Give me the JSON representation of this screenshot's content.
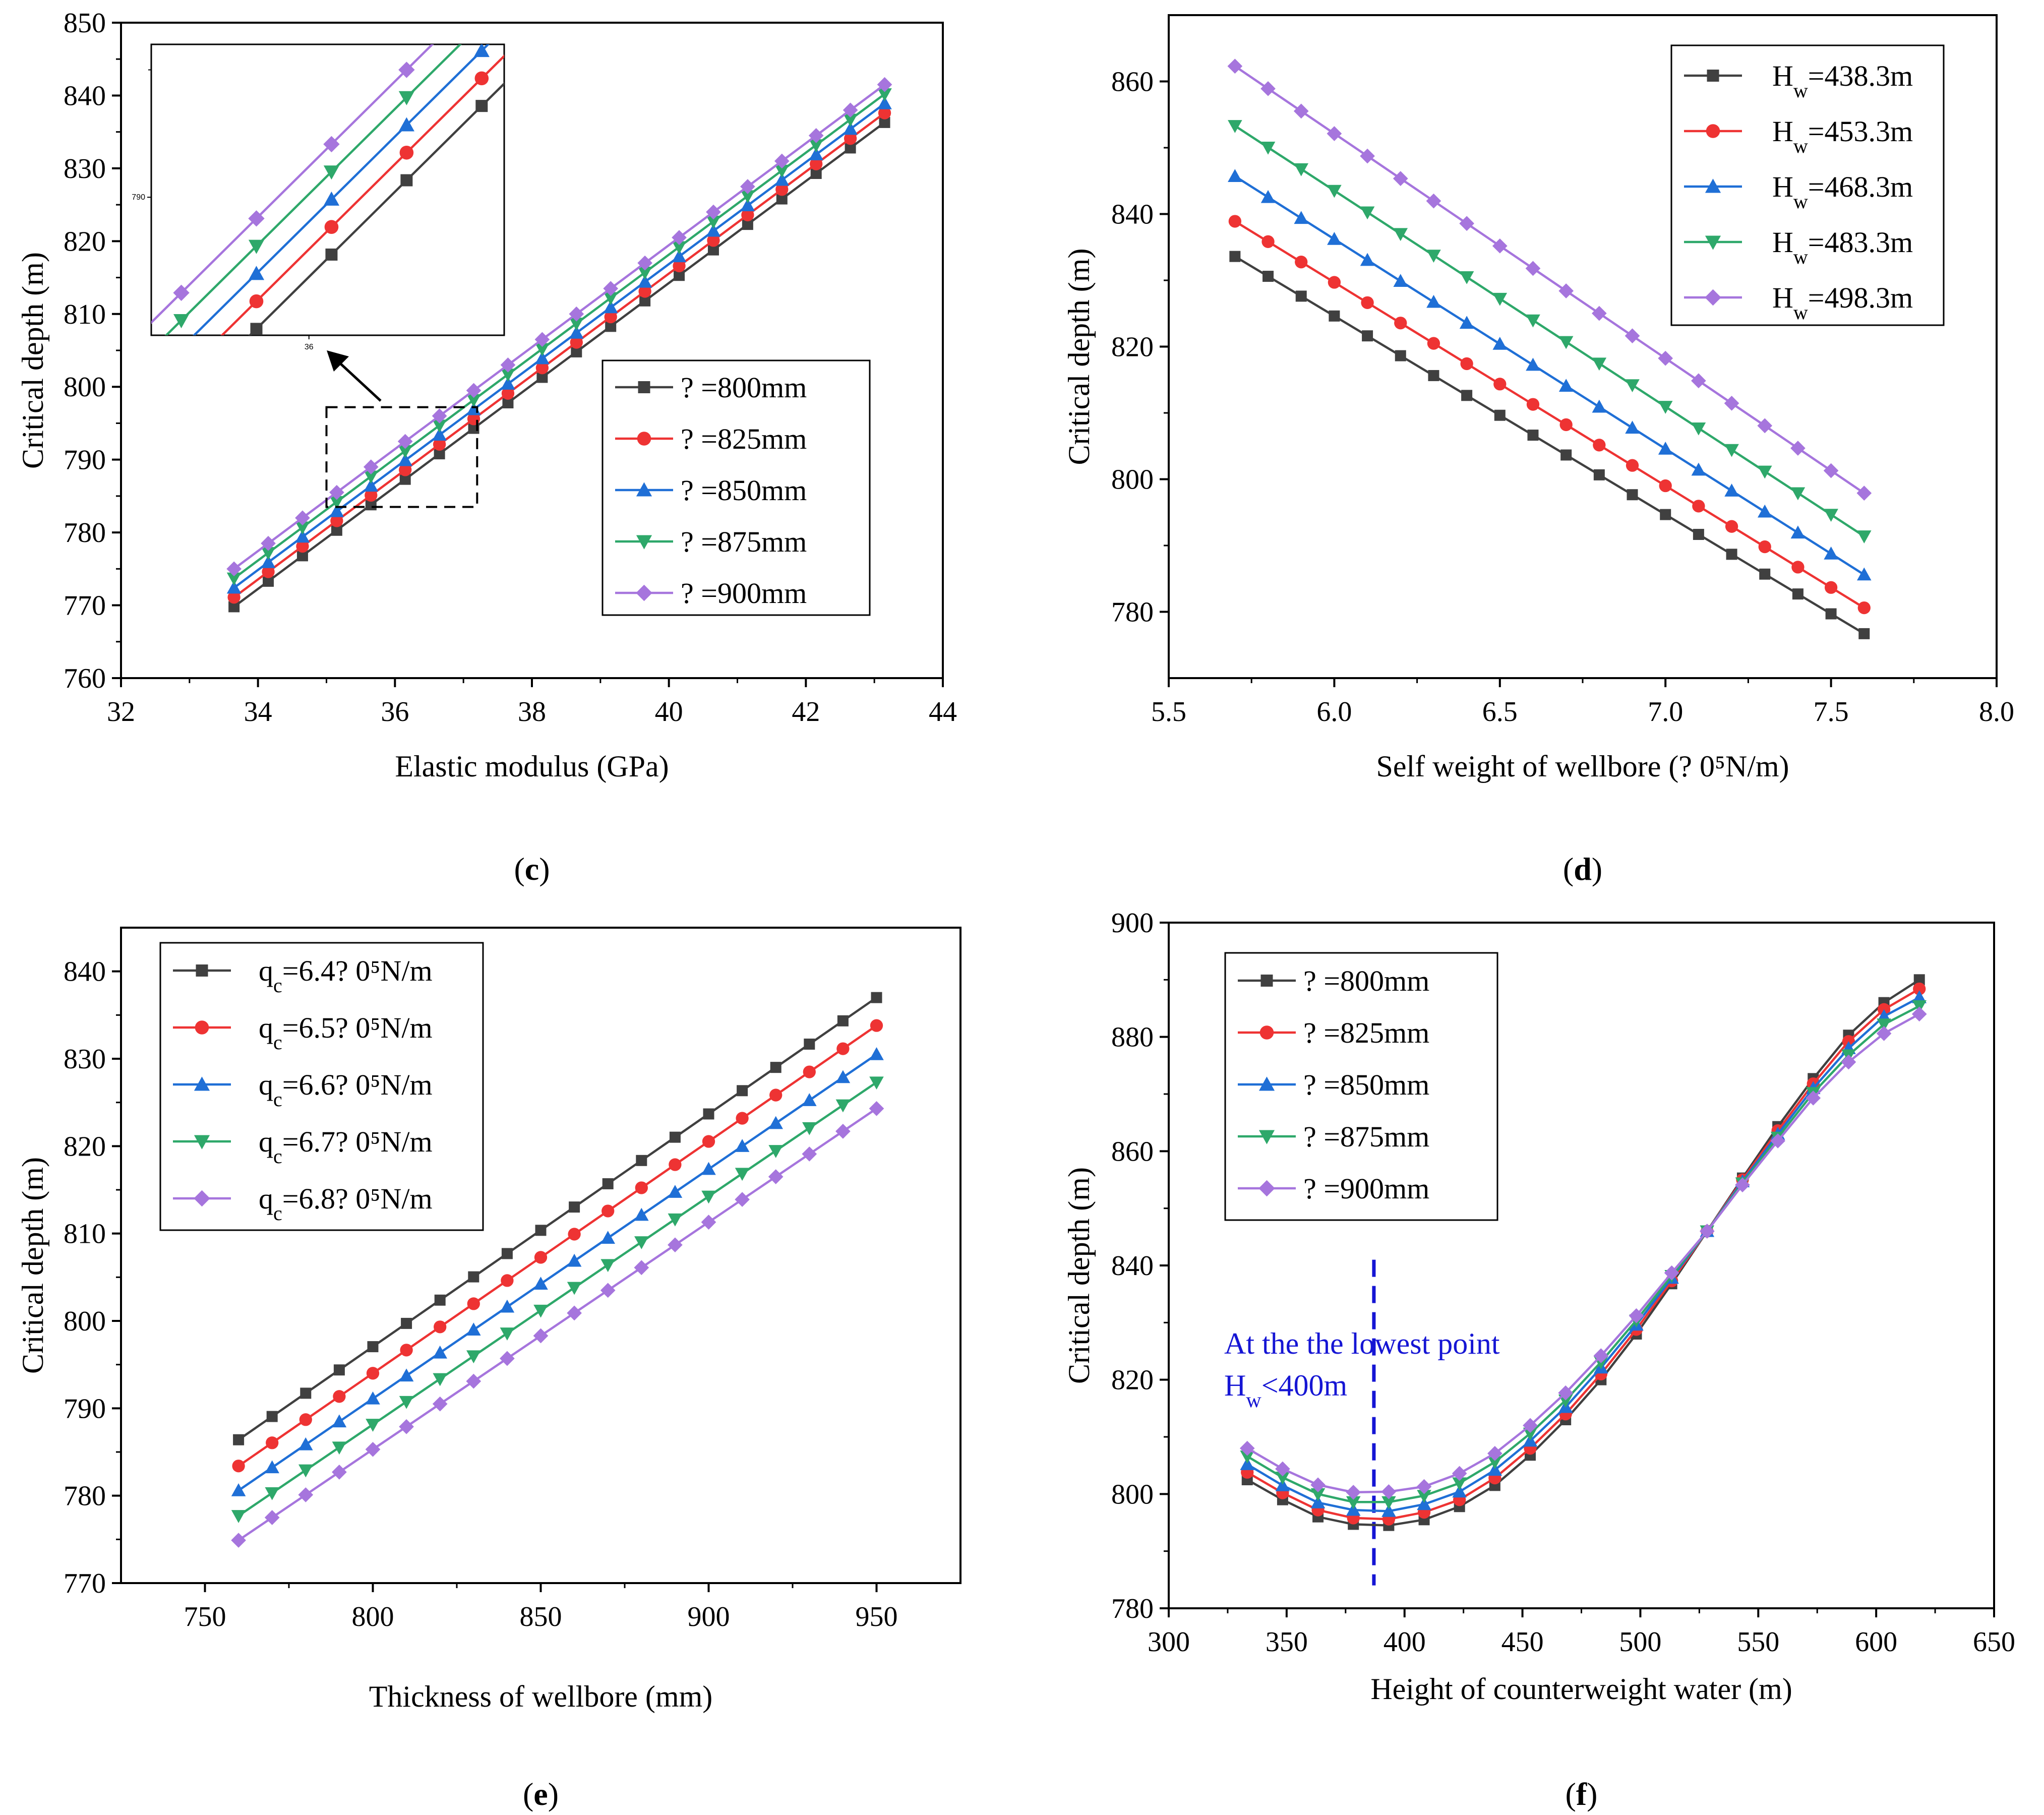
{
  "colors": {
    "series": [
      "#404040",
      "#ee3333",
      "#1f6fd6",
      "#2ea86a",
      "#a675dd"
    ],
    "axis": "#000000",
    "annotation": "#1515d4",
    "dashed_line": "#1515d4"
  },
  "chart_data": [
    {
      "id": "c",
      "panel_label": "(c)",
      "type": "line",
      "title": "",
      "xlabel": "Elastic modulus (GPa)",
      "ylabel": "Critical depth (m)",
      "xlim": [
        32,
        44
      ],
      "ylim": [
        760,
        850
      ],
      "xticks": [
        32,
        34,
        36,
        38,
        40,
        42,
        44
      ],
      "yticks": [
        760,
        770,
        780,
        790,
        800,
        810,
        820,
        830,
        840,
        850
      ],
      "xtick_labels": [
        "32",
        "34",
        "36",
        "38",
        "40",
        "42",
        "44"
      ],
      "ytick_labels": [
        "760",
        "770",
        "780",
        "790",
        "800",
        "810",
        "820",
        "830",
        "840",
        "850"
      ],
      "legend_position": "lower-right",
      "x": [
        33.65,
        34.15,
        34.65,
        35.15,
        35.65,
        36.15,
        36.65,
        37.15,
        37.65,
        38.15,
        38.65,
        39.15,
        39.65,
        40.15,
        40.65,
        41.15,
        41.65,
        42.15,
        42.65,
        43.15
      ],
      "series": [
        {
          "name": "? =800mm",
          "marker": "square",
          "y0": 769.8,
          "y1": 836.3
        },
        {
          "name": "? =825mm",
          "marker": "circle",
          "y0": 771.1,
          "y1": 837.6
        },
        {
          "name": "? =850mm",
          "marker": "triangle-up",
          "y0": 772.4,
          "y1": 838.9
        },
        {
          "name": "? =875mm",
          "marker": "triangle-down",
          "y0": 773.7,
          "y1": 840.2
        },
        {
          "name": "? =900mm",
          "marker": "diamond",
          "y0": 775.0,
          "y1": 841.5
        }
      ],
      "zoom_box": {
        "x": [
          35.0,
          37.2
        ],
        "y": [
          783.5,
          797.2
        ]
      },
      "inset": {
        "xlim": [
          34.95,
          37.3
        ],
        "ylim": [
          783.5,
          797.2
        ],
        "tick_x_label": "36",
        "tick_y_label": "790"
      }
    },
    {
      "id": "d",
      "panel_label": "(d)",
      "type": "line",
      "title": "",
      "xlabel": "Self weight of wellbore (?   0⁵N/m)",
      "ylabel": "Critical depth (m)",
      "xlim": [
        5.5,
        8.0
      ],
      "ylim": [
        770,
        870
      ],
      "xticks": [
        5.5,
        6.0,
        6.5,
        7.0,
        7.5,
        8.0
      ],
      "yticks": [
        780,
        800,
        820,
        840,
        860
      ],
      "xtick_labels": [
        "5.5",
        "6.0",
        "6.5",
        "7.0",
        "7.5",
        "8.0"
      ],
      "ytick_labels": [
        "780",
        "800",
        "820",
        "840",
        "860"
      ],
      "legend_position": "top-right",
      "x": [
        5.7,
        5.8,
        5.9,
        6.0,
        6.1,
        6.2,
        6.3,
        6.4,
        6.5,
        6.6,
        6.7,
        6.8,
        6.9,
        7.0,
        7.1,
        7.2,
        7.3,
        7.4,
        7.5,
        7.6
      ],
      "series": [
        {
          "name": "H",
          "sub": "w",
          "rest": "=438.3m",
          "marker": "square",
          "y0": 833.6,
          "y1": 776.7
        },
        {
          "name": "H",
          "sub": "w",
          "rest": "=453.3m",
          "marker": "circle",
          "y0": 838.9,
          "y1": 780.6
        },
        {
          "name": "H",
          "sub": "w",
          "rest": "=468.3m",
          "marker": "triangle-up",
          "y0": 845.7,
          "y1": 785.6
        },
        {
          "name": "H",
          "sub": "w",
          "rest": "=483.3m",
          "marker": "triangle-down",
          "y0": 853.3,
          "y1": 791.4
        },
        {
          "name": "H",
          "sub": "w",
          "rest": "=498.3m",
          "marker": "diamond",
          "y0": 862.3,
          "y1": 797.9
        }
      ]
    },
    {
      "id": "e",
      "panel_label": "(e)",
      "type": "line",
      "title": "",
      "xlabel": "Thickness of wellbore (mm)",
      "ylabel": "Critical depth (m)",
      "xlim": [
        725,
        975
      ],
      "ylim": [
        770,
        845
      ],
      "xticks": [
        750,
        800,
        850,
        900,
        950
      ],
      "yticks": [
        770,
        780,
        790,
        800,
        810,
        820,
        830,
        840
      ],
      "xtick_labels": [
        "750",
        "800",
        "850",
        "900",
        "950"
      ],
      "ytick_labels": [
        "770",
        "780",
        "790",
        "800",
        "810",
        "820",
        "830",
        "840"
      ],
      "legend_position": "top-left",
      "x": [
        760,
        770,
        780,
        790,
        800,
        810,
        820,
        830,
        840,
        850,
        860,
        870,
        880,
        890,
        900,
        910,
        920,
        930,
        940,
        950
      ],
      "series": [
        {
          "name": "q",
          "sub": "c",
          "rest": "=6.4?   0⁵N/m",
          "marker": "square",
          "y0": 786.4,
          "y1": 837.0
        },
        {
          "name": "q",
          "sub": "c",
          "rest": "=6.5?   0⁵N/m",
          "marker": "circle",
          "y0": 783.4,
          "y1": 833.8
        },
        {
          "name": "q",
          "sub": "c",
          "rest": "=6.6?   0⁵N/m",
          "marker": "triangle-up",
          "y0": 780.6,
          "y1": 830.5
        },
        {
          "name": "q",
          "sub": "c",
          "rest": "=6.7?   0⁵N/m",
          "marker": "triangle-down",
          "y0": 777.7,
          "y1": 827.3
        },
        {
          "name": "q",
          "sub": "c",
          "rest": "=6.8?   0⁵N/m",
          "marker": "diamond",
          "y0": 774.9,
          "y1": 824.3
        }
      ]
    },
    {
      "id": "f",
      "panel_label": "(f)",
      "type": "line",
      "title": "",
      "xlabel": "Height of counterweight water (m)",
      "ylabel": "Critical depth (m)",
      "xlim": [
        300,
        650
      ],
      "ylim": [
        780,
        900
      ],
      "xticks": [
        300,
        350,
        400,
        450,
        500,
        550,
        600,
        650
      ],
      "yticks": [
        780,
        800,
        820,
        840,
        860,
        880,
        900
      ],
      "xtick_labels": [
        "300",
        "350",
        "400",
        "450",
        "500",
        "550",
        "600",
        "650"
      ],
      "ytick_labels": [
        "780",
        "800",
        "820",
        "840",
        "860",
        "880",
        "900"
      ],
      "legend_position": "top-left",
      "x": [
        333.3,
        348.3,
        363.3,
        378.3,
        393.3,
        408.3,
        423.3,
        438.3,
        453.3,
        468.3,
        483.3,
        498.3,
        513.3,
        528.3,
        543.3,
        558.3,
        573.3,
        588.3,
        603.3,
        618.3
      ],
      "series": [
        {
          "name": "? =800mm",
          "marker": "square",
          "values": [
            802.5,
            799.0,
            796.0,
            794.7,
            794.5,
            795.5,
            797.8,
            801.5,
            806.8,
            813.0,
            820.0,
            828.0,
            836.8,
            846.0,
            855.3,
            864.3,
            872.7,
            880.3,
            886.0,
            890.0
          ]
        },
        {
          "name": "? =825mm",
          "marker": "circle",
          "values": [
            803.8,
            800.2,
            797.2,
            795.8,
            795.6,
            796.8,
            799.0,
            802.8,
            808.0,
            814.0,
            821.0,
            828.8,
            837.3,
            846.0,
            855.0,
            863.6,
            871.8,
            879.2,
            884.8,
            888.4
          ]
        },
        {
          "name": "? =850mm",
          "marker": "triangle-up",
          "values": [
            805.2,
            801.5,
            798.5,
            797.2,
            797.0,
            798.2,
            800.4,
            804.2,
            809.3,
            815.2,
            822.1,
            829.6,
            837.8,
            846.0,
            854.7,
            863.0,
            871.0,
            878.0,
            883.6,
            886.9
          ]
        },
        {
          "name": "? =875mm",
          "marker": "triangle-down",
          "values": [
            806.6,
            802.9,
            800.0,
            798.6,
            798.6,
            799.7,
            801.9,
            805.6,
            810.6,
            816.4,
            823.1,
            830.4,
            838.2,
            846.0,
            854.4,
            862.4,
            870.2,
            876.8,
            882.2,
            885.4
          ]
        },
        {
          "name": "? =900mm",
          "marker": "diamond",
          "values": [
            808.0,
            804.4,
            801.6,
            800.3,
            800.4,
            801.3,
            803.6,
            807.1,
            812.0,
            817.7,
            824.2,
            831.2,
            838.7,
            846.0,
            854.1,
            861.8,
            869.3,
            875.6,
            880.6,
            884.0
          ]
        }
      ],
      "dashed_line_x": 387,
      "annotation": {
        "line1": "At the the lowest point",
        "line2_main": "H",
        "line2_sub": "w",
        "line2_rest": "<400m"
      }
    }
  ]
}
